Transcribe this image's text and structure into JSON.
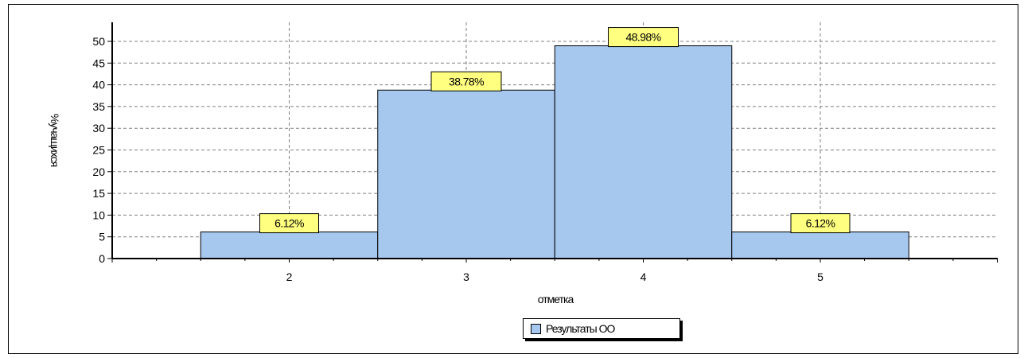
{
  "chart_data": {
    "type": "bar",
    "categories": [
      "2",
      "3",
      "4",
      "5"
    ],
    "series": [
      {
        "name": "Результаты ОО",
        "values": [
          6.12,
          38.78,
          48.98,
          6.12
        ]
      }
    ],
    "data_labels": [
      "6.12%",
      "38.78%",
      "48.98%",
      "6.12%"
    ],
    "xlabel": "отметка",
    "ylabel": "%учащихся",
    "ylim": [
      0,
      50
    ],
    "yticks": [
      0,
      5,
      10,
      15,
      20,
      25,
      30,
      35,
      40,
      45,
      50
    ],
    "grid": true,
    "legend_position": "bottom",
    "colors": {
      "bar_fill": "#a6c8ef",
      "bar_stroke": "#000000",
      "label_fill": "#ffff80",
      "grid": "#808080"
    }
  }
}
